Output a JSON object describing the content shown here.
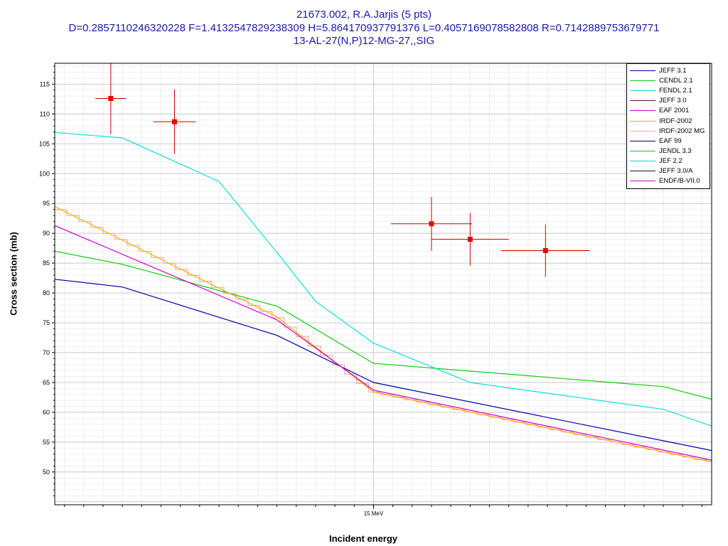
{
  "title_lines": [
    "21673.002, R.A.Jarjis (5 pts)",
    "D=0.2857110246320228 F=1.4132547829238309 H=5.864170937791376 L=0.4057169078582808 R=0.7142889753679771",
    "13-AL-27(N,P)12-MG-27,,SIG"
  ],
  "chart_data": {
    "type": "line",
    "xlabel": "Incident energy",
    "ylabel": "Cross section (mb)",
    "x_unit": "MeV",
    "xlim": [
      13.35,
      16.75
    ],
    "ylim": [
      44.5,
      118.5
    ],
    "x_tick_labels": [
      {
        "x": 15,
        "label": "15 MeV"
      }
    ],
    "y_ticks": [
      50,
      55,
      60,
      65,
      70,
      75,
      80,
      85,
      90,
      95,
      100,
      105,
      110,
      115
    ],
    "grid": true,
    "legend_position": "top-right",
    "series": [
      {
        "name": "JEFF 3.1",
        "color": "#0000aa",
        "style": "line",
        "points": [
          [
            13.35,
            82.3
          ],
          [
            13.7,
            81.0
          ],
          [
            14.5,
            72.9
          ],
          [
            15.0,
            65.0
          ],
          [
            16.75,
            53.6
          ]
        ]
      },
      {
        "name": "CENDL 2.1",
        "color": "#11cc11",
        "style": "line",
        "points": [
          [
            13.35,
            87.0
          ],
          [
            13.7,
            84.8
          ],
          [
            14.5,
            77.8
          ],
          [
            15.0,
            68.2
          ],
          [
            16.5,
            64.3
          ],
          [
            16.75,
            62.2
          ]
        ]
      },
      {
        "name": "FENDL 2.1",
        "color": "#11dddd",
        "style": "line",
        "points": [
          [
            13.35,
            106.9
          ],
          [
            13.7,
            106.0
          ],
          [
            14.2,
            98.7
          ],
          [
            14.5,
            86.8
          ],
          [
            14.7,
            78.6
          ],
          [
            15.0,
            71.6
          ],
          [
            15.5,
            65.0
          ],
          [
            16.5,
            60.5
          ],
          [
            16.75,
            57.7
          ]
        ]
      },
      {
        "name": "JEFF 3.0",
        "color": "#551133",
        "style": "line",
        "points": []
      },
      {
        "name": "EAF 2001",
        "color": "#cc00cc",
        "style": "line",
        "points": []
      },
      {
        "name": "IRDF-2002",
        "color": "#ffaa00",
        "style": "line",
        "points": [
          [
            13.35,
            94.5
          ],
          [
            14.5,
            76.0
          ],
          [
            15.0,
            63.4
          ],
          [
            16.75,
            51.7
          ]
        ]
      },
      {
        "name": "IRDF-2002 MG",
        "color": "#ffaaaa",
        "style": "step",
        "points": [
          [
            13.35,
            94.5
          ],
          [
            14.5,
            76.0
          ],
          [
            15.0,
            63.4
          ],
          [
            16.75,
            51.7
          ]
        ]
      },
      {
        "name": "EAF 99",
        "color": "#000066",
        "style": "line",
        "points": []
      },
      {
        "name": "JENDL 3.3",
        "color": "#22bb22",
        "style": "line",
        "points": []
      },
      {
        "name": "JEF 2.2",
        "color": "#22cccc",
        "style": "line",
        "points": []
      },
      {
        "name": "JEFF 3.0/A",
        "color": "#331111",
        "style": "line",
        "points": []
      },
      {
        "name": "ENDF/B-VII.0",
        "color": "#cc00cc",
        "style": "line",
        "points": [
          [
            13.35,
            91.3
          ],
          [
            14.5,
            75.5
          ],
          [
            15.0,
            63.7
          ],
          [
            16.75,
            52.0
          ]
        ]
      }
    ],
    "measurements": [
      {
        "x": 13.64,
        "y": 112.6,
        "xerr": 0.08,
        "yerr": 6.0
      },
      {
        "x": 13.97,
        "y": 108.7,
        "xerr": 0.11,
        "yerr": 5.4
      },
      {
        "x": 15.3,
        "y": 91.6,
        "xerr": 0.21,
        "yerr": 4.5
      },
      {
        "x": 15.5,
        "y": 89.0,
        "xerr": 0.2,
        "yerr": 4.4
      },
      {
        "x": 15.89,
        "y": 87.1,
        "xerr": 0.23,
        "yerr": 4.4
      }
    ]
  }
}
